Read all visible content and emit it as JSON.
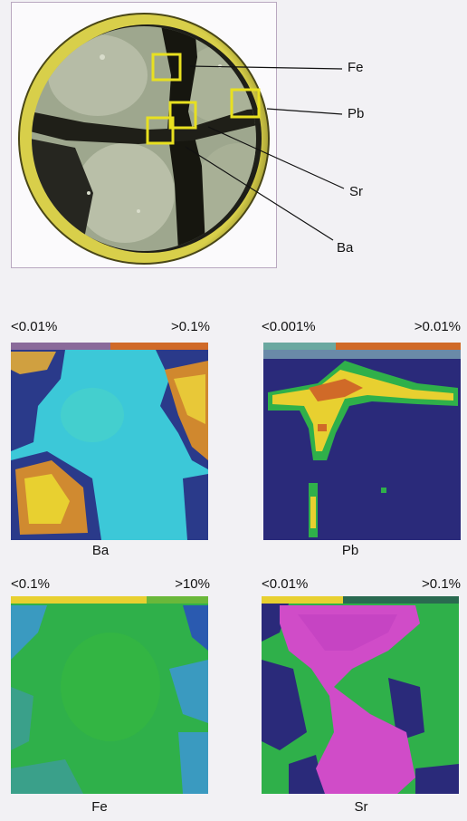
{
  "top_image": {
    "callouts": [
      "Fe",
      "Pb",
      "Sr",
      "Ba"
    ]
  },
  "maps": [
    {
      "element": "Ba",
      "scale_min": "<0.01%",
      "scale_max": ">0.1%"
    },
    {
      "element": "Pb",
      "scale_min": "<0.001%",
      "scale_max": ">0.01%"
    },
    {
      "element": "Fe",
      "scale_min": "<0.1%",
      "scale_max": ">10%"
    },
    {
      "element": "Sr",
      "scale_min": "<0.01%",
      "scale_max": ">0.1%"
    }
  ],
  "colors": {
    "photo_rim": "#c9c23c",
    "photo_dark": "#1b1b16",
    "photo_light": "#a7ad96",
    "box_outline": "#e8e020",
    "map_cyan": "#3cc8d8",
    "map_navy": "#2a2a7a",
    "map_green": "#2fb04a",
    "map_magenta": "#d04cc8",
    "map_yellow": "#e8d030",
    "map_orange": "#d06a28"
  }
}
